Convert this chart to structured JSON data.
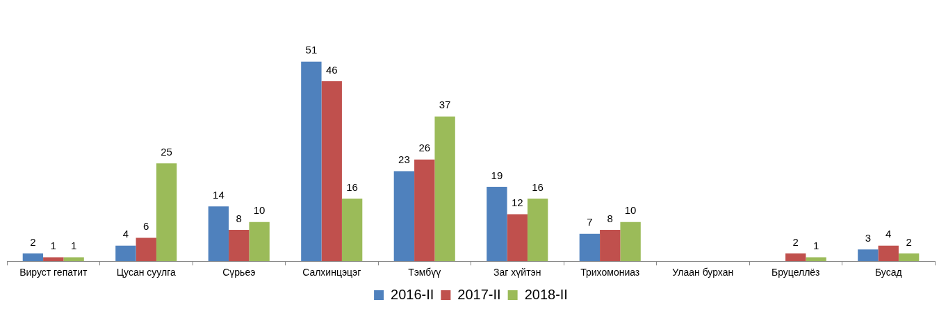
{
  "chart_data": {
    "type": "bar",
    "categories": [
      "Вируст гепатит",
      "Цусан суулга",
      "Сүрьеэ",
      "Салхинцэцэг",
      "Тэмбүү",
      "Заг хүйтэн",
      "Трихомониаз",
      "Улаан бурхан",
      "Бруцеллёз",
      "Бусад"
    ],
    "series": [
      {
        "name": "2016-II",
        "color": "#4f81bd",
        "values": [
          2,
          4,
          14,
          51,
          23,
          19,
          7,
          null,
          null,
          3
        ]
      },
      {
        "name": "2017-II",
        "color": "#c0504d",
        "values": [
          1,
          6,
          8,
          46,
          26,
          12,
          8,
          null,
          2,
          4
        ]
      },
      {
        "name": "2018-II",
        "color": "#9bbb59",
        "values": [
          1,
          25,
          10,
          16,
          37,
          16,
          10,
          null,
          1,
          2
        ]
      }
    ],
    "data_labels": true,
    "legend": "bottom",
    "grid": false
  }
}
